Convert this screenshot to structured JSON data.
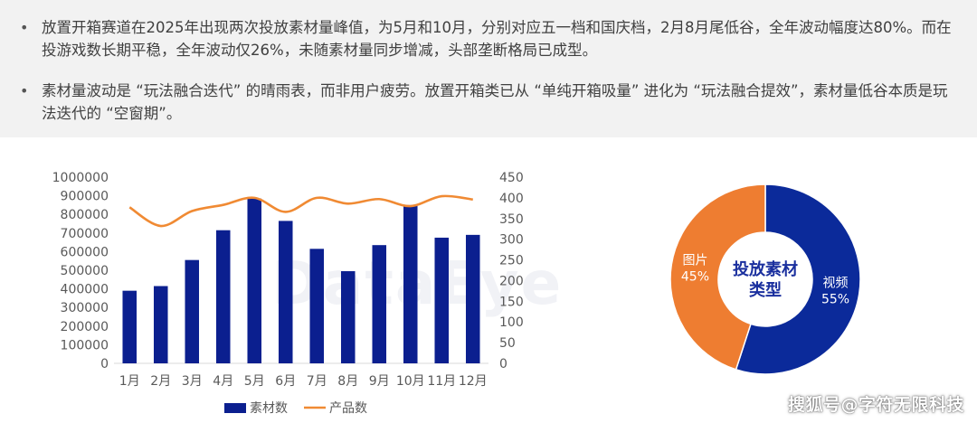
{
  "bullets": [
    {
      "text": "放置开箱赛道在2025年出现两次投放素材量峰值，为5月和10月，分别对应五一档和国庆档，2月8月尾低谷，全年波动幅度达80%。而在投游戏数长期平稳，全年波动仅26%，未随素材量同步增减，头部垄断格局已成型。"
    },
    {
      "text": "素材量波动是 “玩法融合迭代” 的晴雨表，而非用户疲劳。放置开箱类已从 “单纯开箱吸量” 进化为 “玩法融合提效”，素材量低谷本质是玩法迭代的 “空窗期”。"
    }
  ],
  "bullet_symbol": "•",
  "bg_watermark": "DataEye",
  "watermark": "搜狐号@字符无限科技",
  "colors": {
    "bar": "#0b1f8f",
    "line": "#f08a33",
    "donut_video": "#0b2a9a",
    "donut_image": "#ee7d31",
    "center_text": "#1a2f9e"
  },
  "chart_data": [
    {
      "type": "bar+line",
      "categories": [
        "1月",
        "2月",
        "3月",
        "4月",
        "5月",
        "6月",
        "7月",
        "8月",
        "9月",
        "10月",
        "11月",
        "12月"
      ],
      "series": [
        {
          "name": "素材数",
          "type": "bar",
          "axis": "left",
          "values": [
            390000,
            415000,
            555000,
            715000,
            885000,
            765000,
            615000,
            495000,
            635000,
            850000,
            675000,
            690000
          ]
        },
        {
          "name": "产品数",
          "type": "line",
          "axis": "right",
          "values": [
            377,
            332,
            368,
            383,
            400,
            366,
            400,
            386,
            397,
            380,
            404,
            396
          ]
        }
      ],
      "ylim_left": [
        0,
        1000000
      ],
      "yticks_left": [
        "1000000",
        "900000",
        "800000",
        "700000",
        "600000",
        "500000",
        "400000",
        "300000",
        "200000",
        "100000",
        "0"
      ],
      "ylim_right": [
        0,
        450
      ],
      "yticks_right": [
        "450",
        "400",
        "350",
        "300",
        "250",
        "200",
        "150",
        "100",
        "50",
        "0"
      ],
      "legend_position": "bottom",
      "grid": false
    },
    {
      "type": "pie",
      "donut": true,
      "center_label": [
        "投放素材",
        "类型"
      ],
      "slices": [
        {
          "label": "视频",
          "pct_label": "55%",
          "value": 55
        },
        {
          "label": "图片",
          "pct_label": "45%",
          "value": 45
        }
      ]
    }
  ]
}
